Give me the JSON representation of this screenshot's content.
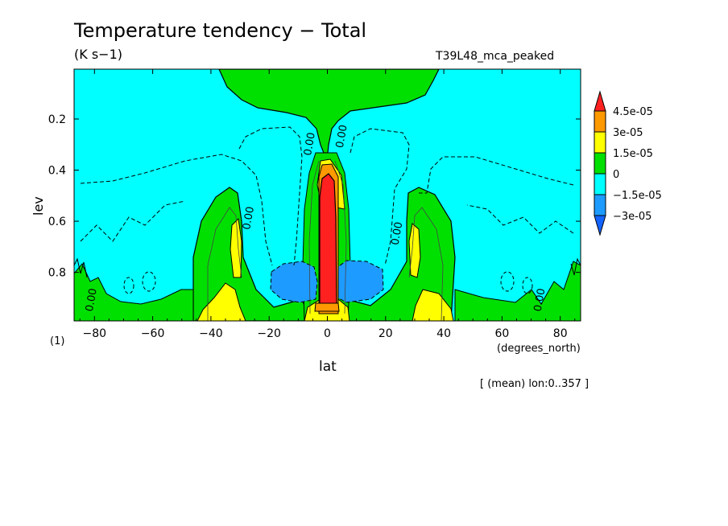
{
  "chart_data": {
    "type": "heatmap",
    "title": "Temperature tendency − Total",
    "units": "(K s−1)",
    "run_name": "T39L48_mca_peaked",
    "xlabel": "lat",
    "x_units": "(degrees_north)",
    "ylabel": "lev",
    "level_note": "(1)",
    "averaging_note": "[ (mean) lon:0..357 ]",
    "xlim": [
      -87,
      87
    ],
    "ylim": [
      0.005,
      0.99
    ],
    "y_inverted": true,
    "x_ticks": [
      {
        "value": -80,
        "label": "−80"
      },
      {
        "value": -60,
        "label": "−60"
      },
      {
        "value": -40,
        "label": "−40"
      },
      {
        "value": -20,
        "label": "−20"
      },
      {
        "value": 0,
        "label": "0"
      },
      {
        "value": 20,
        "label": "20"
      },
      {
        "value": 40,
        "label": "40"
      },
      {
        "value": 60,
        "label": "60"
      },
      {
        "value": 80,
        "label": "80"
      }
    ],
    "y_ticks": [
      {
        "value": 0.2,
        "label": "0.2"
      },
      {
        "value": 0.4,
        "label": "0.4"
      },
      {
        "value": 0.6,
        "label": "0.6"
      },
      {
        "value": 0.8,
        "label": "0.8"
      }
    ],
    "contour_labels": [
      {
        "x": -5,
        "y": 0.3,
        "text": "0.00"
      },
      {
        "x": 6,
        "y": 0.27,
        "text": "0.00"
      },
      {
        "x": -26,
        "y": 0.59,
        "text": "0.00"
      },
      {
        "x": 25,
        "y": 0.65,
        "text": "0.00"
      },
      {
        "x": -80,
        "y": 0.91,
        "text": "0.00"
      },
      {
        "x": 74,
        "y": 0.91,
        "text": "0.00"
      }
    ],
    "colorbar": {
      "levels": [
        {
          "label": "4.5e-05",
          "value": 4.5e-05
        },
        {
          "label": "3e-05",
          "value": 3e-05
        },
        {
          "label": "1.5e-05",
          "value": 1.5e-05
        },
        {
          "label": "0",
          "value": 0
        },
        {
          "label": "−1.5e-05",
          "value": -1.5e-05
        },
        {
          "label": "−3e-05",
          "value": -3e-05
        }
      ],
      "colors": [
        "#ff2020",
        "#ff9900",
        "#ffff00",
        "#00e000",
        "#00ffff",
        "#1e9bff",
        "#1464ff"
      ]
    },
    "regions": [
      {
        "name": "negative-background",
        "range": "-1.5e-05 to 0",
        "color": "#00ffff"
      },
      {
        "name": "stratosphere-warming",
        "range": "0 to 1.5e-05",
        "color": "#00e000"
      },
      {
        "name": "equatorial-heating-core",
        "range": "> 4.5e-05",
        "color": "#ff2020"
      },
      {
        "name": "boundary-layer-cooling",
        "range": "-3e-05 to -1.5e-05",
        "color": "#1e9bff"
      },
      {
        "name": "subtropical-lobes",
        "range": "0 to 1.5e-05",
        "color": "#00e000"
      },
      {
        "name": "surface-warming",
        "range": "1.5e-05 to 3e-05",
        "color": "#ffff00"
      }
    ]
  }
}
